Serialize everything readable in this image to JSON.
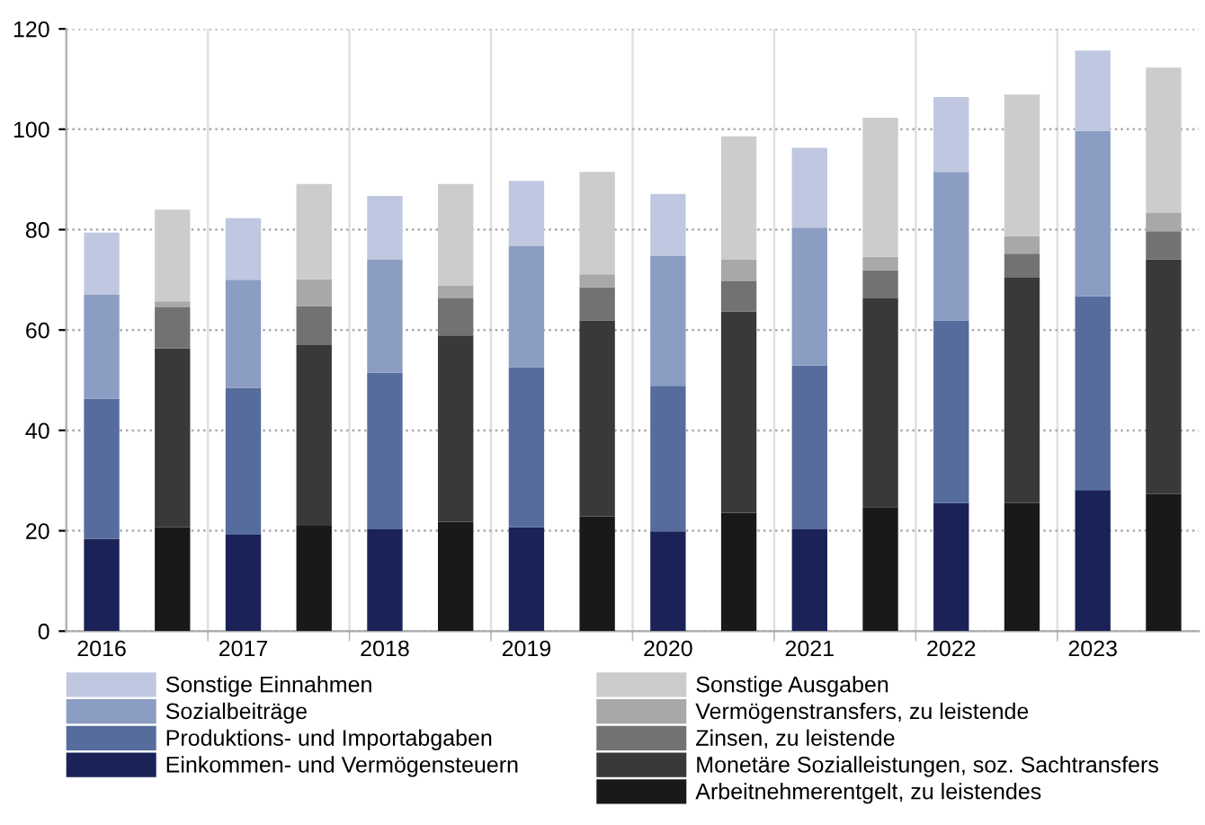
{
  "chart_data": {
    "type": "bar",
    "stacked": true,
    "categories": [
      "2016",
      null,
      "2017",
      null,
      "2018",
      null,
      "2019",
      null,
      "2020",
      null,
      "2021",
      null,
      "2022",
      null,
      "2023",
      null
    ],
    "series": [
      {
        "name": "Einkommen- und Vermögensteuern",
        "color": "#1a2257",
        "values": [
          18.4,
          null,
          19.2,
          null,
          20.3,
          null,
          20.7,
          null,
          19.9,
          null,
          20.3,
          null,
          25.5,
          null,
          28.1,
          null
        ]
      },
      {
        "name": "Produktions- und Importabgaben",
        "color": "#566c9c",
        "values": [
          27.9,
          null,
          29.3,
          null,
          31.2,
          null,
          31.9,
          null,
          29.0,
          null,
          32.6,
          null,
          36.4,
          null,
          38.6,
          null
        ]
      },
      {
        "name": "Sozialbeiträge",
        "color": "#8b9dc3",
        "values": [
          20.8,
          null,
          21.5,
          null,
          22.6,
          null,
          24.1,
          null,
          25.9,
          null,
          27.5,
          null,
          29.6,
          null,
          33.0,
          null
        ]
      },
      {
        "name": "Sonstige Einnahmen",
        "color": "#bfc8e0",
        "values": [
          12.3,
          null,
          12.3,
          null,
          12.6,
          null,
          13.0,
          null,
          12.3,
          null,
          15.9,
          null,
          14.9,
          null,
          16.0,
          null
        ]
      },
      {
        "name": "Arbeitnehmerentgelt, zu leistendes",
        "color": "#191919",
        "values": [
          null,
          20.7,
          null,
          21.0,
          null,
          21.8,
          null,
          22.9,
          null,
          23.6,
          null,
          24.7,
          null,
          25.5,
          null,
          27.3
        ]
      },
      {
        "name": "Monetäre Sozialleistungen, soz. Sachtransfers",
        "color": "#393939",
        "values": [
          null,
          35.6,
          null,
          36.0,
          null,
          37.1,
          null,
          39.0,
          null,
          40.1,
          null,
          41.6,
          null,
          44.9,
          null,
          46.8
        ]
      },
      {
        "name": "Zinsen, zu leistende",
        "color": "#727272",
        "values": [
          null,
          8.2,
          null,
          7.8,
          null,
          7.4,
          null,
          6.6,
          null,
          6.0,
          null,
          5.6,
          null,
          4.8,
          null,
          5.6
        ]
      },
      {
        "name": "Vermögenstransfers, zu leistende",
        "color": "#a8a8a8",
        "values": [
          null,
          1.2,
          null,
          5.3,
          null,
          2.6,
          null,
          2.6,
          null,
          4.4,
          null,
          2.7,
          null,
          3.5,
          null,
          3.6
        ]
      },
      {
        "name": "Sonstige Ausgaben",
        "color": "#cccccc",
        "values": [
          null,
          18.3,
          null,
          19.0,
          null,
          20.2,
          null,
          20.4,
          null,
          24.5,
          null,
          27.7,
          null,
          28.2,
          null,
          29.0
        ]
      }
    ],
    "ylim": [
      0,
      120
    ],
    "yticks": [
      0,
      20,
      40,
      60,
      80,
      100,
      120
    ],
    "grid": true,
    "legend": "bottom"
  }
}
